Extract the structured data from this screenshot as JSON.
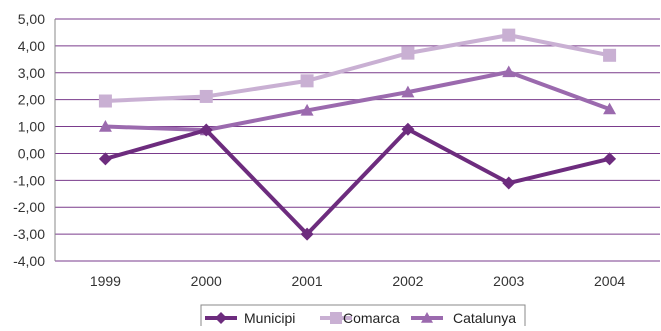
{
  "chart_data": {
    "type": "line",
    "title": "",
    "xlabel": "",
    "ylabel": "",
    "categories": [
      "1999",
      "2000",
      "2001",
      "2002",
      "2003",
      "2004"
    ],
    "ylim": [
      -4,
      5
    ],
    "ytick_step": 1,
    "y_tick_labels": [
      "5,00",
      "4,00",
      "3,00",
      "2,00",
      "1,00",
      "0,00",
      "-1,00",
      "-2,00",
      "-3,00",
      "-4,00"
    ],
    "grid": true,
    "legend": "bottom",
    "series": [
      {
        "name": "Municipi",
        "values": [
          -0.2,
          0.87,
          -3.0,
          0.9,
          -1.1,
          -0.2
        ],
        "color": "#6d2c7e",
        "marker": "diamond"
      },
      {
        "name": "Comarca",
        "values": [
          1.95,
          2.12,
          2.7,
          3.73,
          4.4,
          3.65
        ],
        "color": "#c9b0d3",
        "marker": "square"
      },
      {
        "name": "Catalunya",
        "values": [
          1.0,
          0.87,
          1.6,
          2.28,
          3.03,
          1.65
        ],
        "color": "#9b6aae",
        "marker": "triangle"
      }
    ],
    "grid_color": "#7a3b8c",
    "axis_color": "#888888"
  }
}
